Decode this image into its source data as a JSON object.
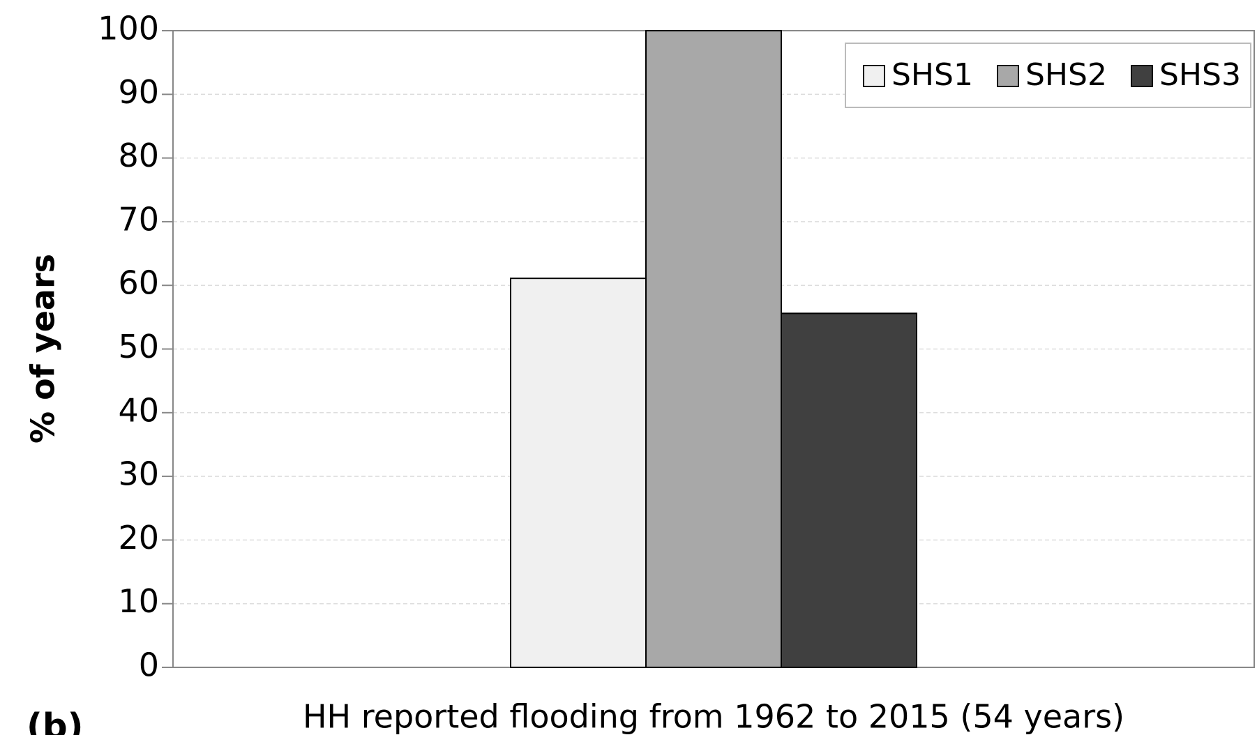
{
  "chart_data": {
    "type": "bar",
    "y_label": "% of years",
    "annotation": "(b)",
    "categories": [
      "HH reported flooding from 1962 to 2015 (54 years)"
    ],
    "series": [
      {
        "name": "SHS1",
        "color": "#f0f0f0",
        "values": [
          61.1
        ]
      },
      {
        "name": "SHS2",
        "color": "#a8a8a8",
        "values": [
          100
        ]
      },
      {
        "name": "SHS3",
        "color": "#404040",
        "values": [
          55.6
        ]
      }
    ],
    "ylim": [
      0,
      100
    ],
    "yticks": [
      0,
      10,
      20,
      30,
      40,
      50,
      60,
      70,
      80,
      90,
      100
    ],
    "grid": true,
    "legend": "top-right"
  }
}
